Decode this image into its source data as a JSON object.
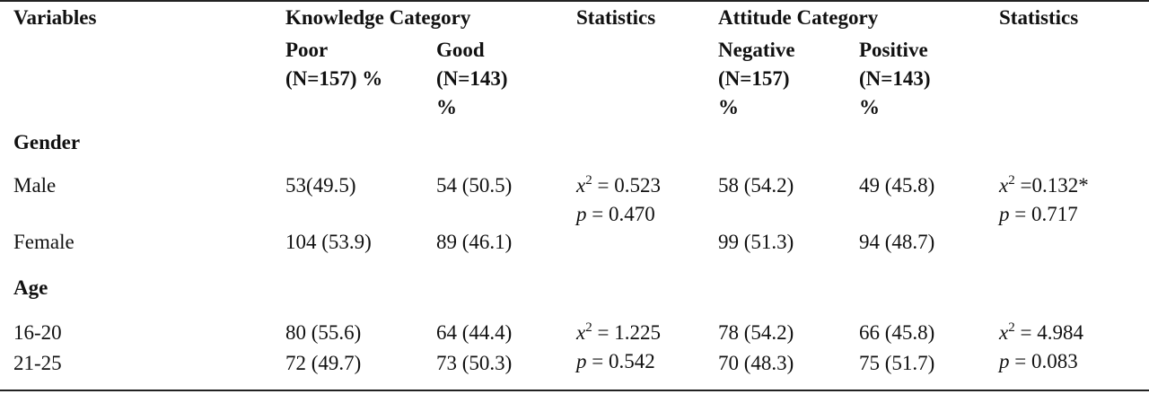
{
  "header": {
    "variables": "Variables",
    "knowledge_category": "Knowledge Category",
    "statistics_1": "Statistics",
    "attitude_category": "Attitude Category",
    "statistics_2": "Statistics",
    "poor_line1": "Poor",
    "poor_line2": "(N=157) %",
    "good_line1": "Good",
    "good_line2": "(N=143)",
    "good_line3": "%",
    "negative_line1": "Negative",
    "negative_line2": "(N=157)",
    "negative_line3": "%",
    "positive_line1": "Positive",
    "positive_line2": "(N=143)",
    "positive_line3": "%"
  },
  "sections": [
    {
      "title": "Gender",
      "rows": [
        {
          "label": "Male",
          "poor": "53(49.5)",
          "good": "54 (50.5)",
          "negative": "58 (54.2)",
          "positive": "49 (45.8)"
        },
        {
          "label": "Female",
          "poor": "104 (53.9)",
          "good": "89 (46.1)",
          "negative": "99 (51.3)",
          "positive": "94 (48.7)"
        }
      ],
      "knowledge_stats": {
        "chi_symbol": "x",
        "chi_sup": "2",
        "chi_value": " = 0.523",
        "p_symbol": "p",
        "p_value": " = 0.470"
      },
      "attitude_stats": {
        "chi_symbol": "x",
        "chi_sup": "2",
        "chi_value": " =0.132*",
        "p_symbol": "p",
        "p_value": " = 0.717"
      }
    },
    {
      "title": "Age",
      "rows": [
        {
          "label": "16-20",
          "poor": "80 (55.6)",
          "good": "64 (44.4)",
          "negative": "78 (54.2)",
          "positive": "66 (45.8)"
        },
        {
          "label": "21-25",
          "poor": "72 (49.7)",
          "good": "73 (50.3)",
          "negative": "70 (48.3)",
          "positive": "75 (51.7)"
        }
      ],
      "knowledge_stats": {
        "chi_symbol": "x",
        "chi_sup": "2",
        "chi_value": " = 1.225",
        "p_symbol": "p",
        "p_value": " = 0.542"
      },
      "attitude_stats": {
        "chi_symbol": "x",
        "chi_sup": "2",
        "chi_value": " = 4.984",
        "p_symbol": "p",
        "p_value": " = 0.083"
      }
    }
  ]
}
